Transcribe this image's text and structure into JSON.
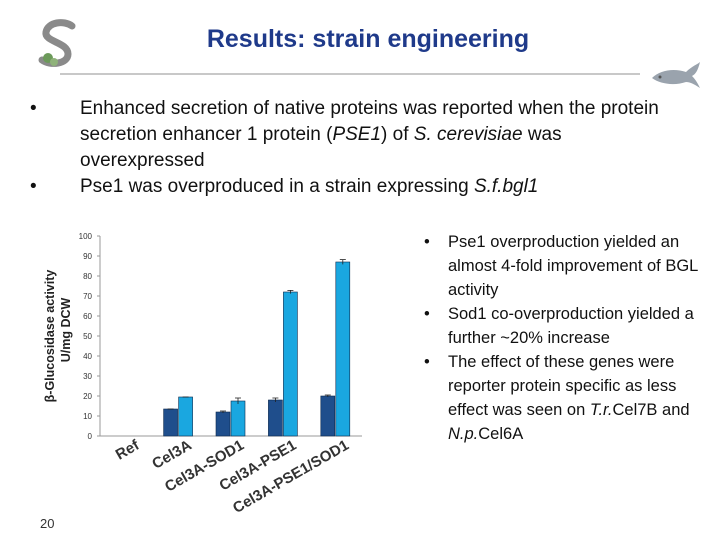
{
  "header": {
    "title": "Results: strain engineering"
  },
  "top_bullets": [
    {
      "parts": [
        {
          "text": "Enhanced secretion of native proteins was reported when the protein secretion enhancer 1 protein (",
          "italic": false
        },
        {
          "text": "PSE1",
          "italic": true
        },
        {
          "text": ") of ",
          "italic": false
        },
        {
          "text": "S. cerevisiae",
          "italic": true
        },
        {
          "text": " was overexpressed",
          "italic": false
        }
      ]
    },
    {
      "parts": [
        {
          "text": "Pse1 was overproduced in a strain expressing ",
          "italic": false
        },
        {
          "text": "S.f.bgl1",
          "italic": true
        }
      ]
    }
  ],
  "bullet_glyph": "•",
  "right_bullets": [
    {
      "parts": [
        {
          "text": "Pse1 overproduction yielded an almost 4-fold improvement of BGL activity",
          "italic": false
        }
      ]
    },
    {
      "parts": [
        {
          "text": "Sod1 co-overproduction yielded a further ~20% increase",
          "italic": false
        }
      ]
    },
    {
      "parts": [
        {
          "text": "The effect of these genes were reporter protein specific as less effect was seen on ",
          "italic": false
        },
        {
          "text": "T.r.",
          "italic": true
        },
        {
          "text": "Cel7B and ",
          "italic": false
        },
        {
          "text": "N.p.",
          "italic": true
        },
        {
          "text": "Cel6A",
          "italic": false
        }
      ]
    }
  ],
  "page_number": "20",
  "colors": {
    "title": "#1f3a8a",
    "series_dark": "#1f4e8c",
    "series_light": "#1aa7e0"
  },
  "chart_data": {
    "type": "bar",
    "categories": [
      "Ref",
      "Cel3A",
      "Cel3A-SOD1",
      "Cel3A-PSE1",
      "Cel3A-PSE1/SOD1"
    ],
    "series": [
      {
        "values": [
          0,
          13.5,
          12,
          18,
          20
        ]
      },
      {
        "values": [
          0,
          19.5,
          17.5,
          72,
          87
        ]
      }
    ],
    "error_bars": [
      [
        0,
        0,
        0.5,
        1,
        0.5
      ],
      [
        0,
        0,
        1.5,
        0.8,
        1.2
      ]
    ],
    "ylabel_line1": "β-Glucosidase activity",
    "ylabel_line2": "U/mg DCW",
    "yticks": [
      0,
      10,
      20,
      30,
      40,
      50,
      60,
      70,
      80,
      90,
      100
    ],
    "ylim": [
      0,
      100
    ],
    "grid": false,
    "legend": "none"
  }
}
